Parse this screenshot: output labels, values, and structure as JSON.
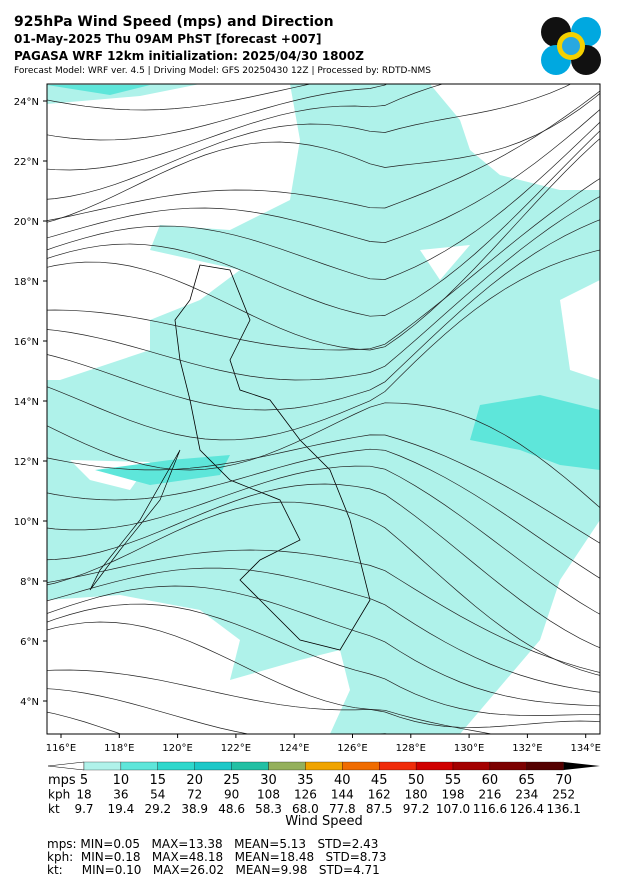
{
  "header": {
    "title": "925hPa Wind Speed (mps) and Direction",
    "line2": "01-May-2025 Thu 09AM PhST [forecast +007]",
    "line3": "PAGASA WRF 12km initialization: 2025/04/30 1800Z",
    "line4": "Forecast Model: WRF ver. 4.5 | Driving Model: GFS 20250430 12Z | Processed by: RDTD-NMS"
  },
  "map": {
    "lat_labels": [
      "24°N",
      "22°N",
      "20°N",
      "18°N",
      "16°N",
      "14°N",
      "12°N",
      "10°N",
      "8°N",
      "6°N",
      "4°N"
    ],
    "lon_labels": [
      "116°E",
      "118°E",
      "120°E",
      "122°E",
      "124°E",
      "126°E",
      "128°E",
      "130°E",
      "132°E",
      "134°E"
    ]
  },
  "colorbar": {
    "row_labels": [
      "mps",
      "kph",
      "kt"
    ],
    "mps": [
      "5",
      "10",
      "15",
      "20",
      "25",
      "30",
      "35",
      "40",
      "45",
      "50",
      "55",
      "60",
      "65",
      "70"
    ],
    "kph": [
      "18",
      "36",
      "54",
      "72",
      "90",
      "108",
      "126",
      "144",
      "162",
      "180",
      "198",
      "216",
      "234",
      "252"
    ],
    "kt": [
      "9.7",
      "19.4",
      "29.2",
      "38.9",
      "48.6",
      "58.3",
      "68.0",
      "77.8",
      "87.5",
      "97.2",
      "107.0",
      "116.6",
      "126.4",
      "136.1"
    ],
    "title": "Wind Speed",
    "colors": [
      "#ffffff",
      "#b0f2ea",
      "#5ee6da",
      "#2ed8cc",
      "#1cc8c8",
      "#22c0a4",
      "#94b05c",
      "#f0a400",
      "#f06c00",
      "#f02c0a",
      "#d00000",
      "#a40000",
      "#7c0000",
      "#540000",
      "#000000"
    ]
  },
  "stats": [
    "mps: MIN=0.05   MAX=13.38   MEAN=5.13   STD=2.43",
    "kph:  MIN=0.18   MAX=48.18   MEAN=18.48   STD=8.73",
    "kt:     MIN=0.10   MAX=26.02   MEAN=9.98   STD=4.71"
  ]
}
